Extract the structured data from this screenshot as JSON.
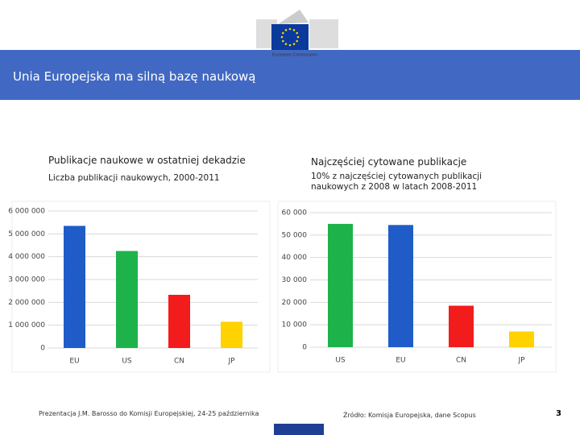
{
  "header": {
    "title": "Unia Europejska ma silną bazę naukową"
  },
  "logo": {
    "text": "European Commission"
  },
  "chart_data": [
    {
      "type": "bar",
      "title": "Publikacje naukowe w ostatniej dekadzie",
      "subtitle": "Liczba publikacji naukowych, 2000-2011",
      "categories": [
        "EU",
        "US",
        "CN",
        "JP"
      ],
      "values": [
        5350000,
        4250000,
        2330000,
        1150000
      ],
      "colors": [
        "#1f5cc8",
        "#1db34a",
        "#f21c1c",
        "#ffd200"
      ],
      "ylim": [
        0,
        6000000
      ],
      "yticks": [
        0,
        {
          "value": 1000000,
          "label": "1 000 000"
        },
        {
          "value": 2000000,
          "label": "2 000 000"
        },
        {
          "value": 3000000,
          "label": "3 000 000"
        },
        {
          "value": 4000000,
          "label": "4 000 000"
        },
        {
          "value": 5000000,
          "label": "5 000 000"
        },
        {
          "value": 6000000,
          "label": "6 000 000"
        }
      ],
      "grid": true
    },
    {
      "type": "bar",
      "title": "Najczęściej cytowane publikacje",
      "subtitle": "10% z najczęściej cytowanych publikacji naukowych z 2008 w latach 2008-2011",
      "categories": [
        "US",
        "EU",
        "CN",
        "JP"
      ],
      "values": [
        55000,
        54500,
        18500,
        7000
      ],
      "colors": [
        "#1db34a",
        "#1f5cc8",
        "#f21c1c",
        "#ffd200"
      ],
      "ylim": [
        0,
        60000
      ],
      "yticks": [
        0,
        {
          "value": 10000,
          "label": "10 000"
        },
        {
          "value": 20000,
          "label": "20 000"
        },
        {
          "value": 30000,
          "label": "30 000"
        },
        {
          "value": 40000,
          "label": "40 000"
        },
        {
          "value": 50000,
          "label": "50 000"
        },
        {
          "value": 60000,
          "label": "60 000"
        }
      ],
      "grid": true
    }
  ],
  "footer": {
    "presentation": "Prezentacja J.M. Barosso do Komisji Europejskiej, 24-25 października",
    "source": "Źródło: Komisja Europejska, dane Scopus",
    "page": "3"
  }
}
